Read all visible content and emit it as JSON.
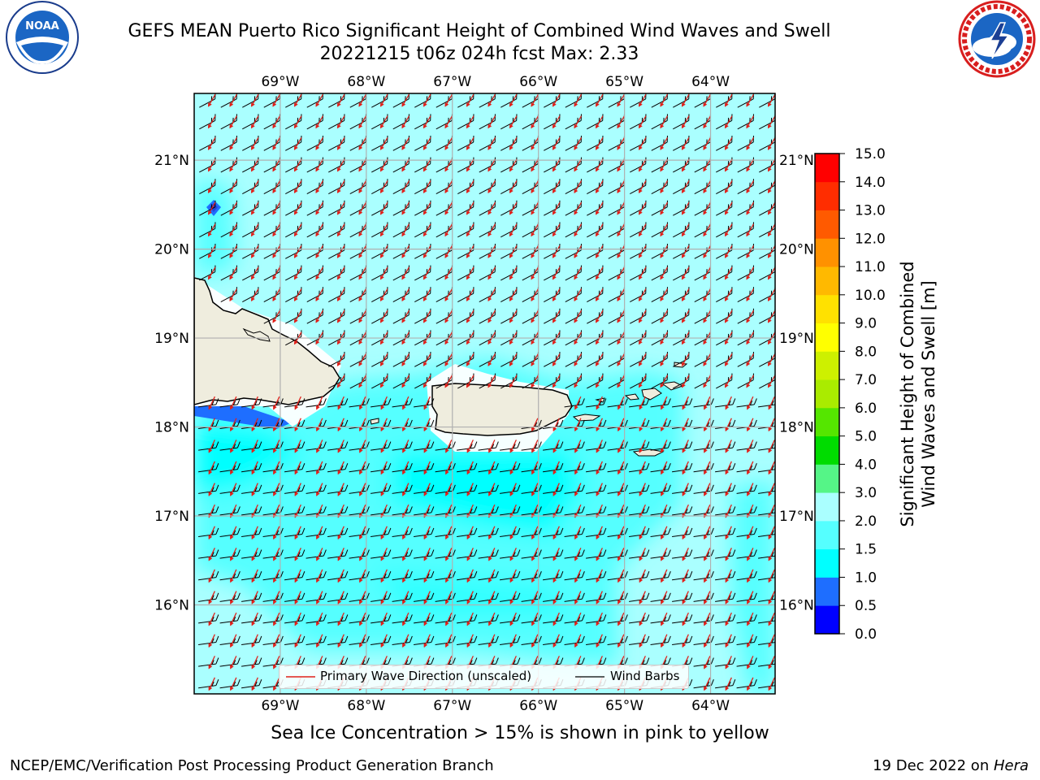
{
  "title_line1": "GEFS MEAN Puerto Rico Significant Height of Combined Wind Waves and Swell",
  "title_line2": "20221215 t06z 024h fcst   Max: 2.33",
  "lon_ticks": [
    "69°W",
    "68°W",
    "67°W",
    "66°W",
    "65°W",
    "64°W"
  ],
  "lat_ticks": [
    "21°N",
    "20°N",
    "19°N",
    "18°N",
    "17°N",
    "16°N"
  ],
  "lon_values": [
    -69,
    -68,
    -67,
    -66,
    -65,
    -64
  ],
  "lat_values": [
    21,
    20,
    19,
    18,
    17,
    16
  ],
  "extent": {
    "lon_min": -70,
    "lon_max": -63.25,
    "lat_min": 15,
    "lat_max": 21.75
  },
  "colorbar": {
    "label": "Significant Height of Combined Wind Waves and Swell [m]",
    "label_line1": "Significant Height of Combined",
    "label_line2": "Wind Waves and Swell [m]",
    "ticks": [
      "0.0",
      "0.5",
      "1.0",
      "1.5",
      "2.0",
      "3.0",
      "4.0",
      "5.0",
      "6.0",
      "7.0",
      "8.0",
      "9.0",
      "10.0",
      "11.0",
      "12.0",
      "13.0",
      "14.0",
      "15.0"
    ],
    "colors": [
      "#0000ff",
      "#1e6eff",
      "#00ffff",
      "#55ffff",
      "#aaffff",
      "#55f587",
      "#00dc00",
      "#55e600",
      "#aaeb00",
      "#cdf000",
      "#ffff00",
      "#ffe100",
      "#ffb900",
      "#ff9100",
      "#ff5a00",
      "#ff2d00",
      "#ff0000"
    ]
  },
  "legend": {
    "wave_label": "Primary Wave Direction (unscaled)",
    "barb_label": "Wind Barbs",
    "wave_color": "#e0201a",
    "barb_color": "#000000"
  },
  "colors": {
    "land": "#efedde",
    "ocean_high": "#aaffff",
    "ocean_mid": "#55ffff",
    "ocean_low": "#00ffff",
    "grid": "#b0b0b0",
    "coast": "#000000"
  },
  "note": "Sea Ice Concentration > 15% is shown in pink to yellow",
  "footer_left": "NCEP/EMC/Verification Post Processing Product Generation Branch",
  "footer_date": "19 Dec 2022 on ",
  "footer_machine": "Hera",
  "logos": {
    "left": "noaa-logo",
    "left_text": "NOAA",
    "right": "nws-logo"
  }
}
